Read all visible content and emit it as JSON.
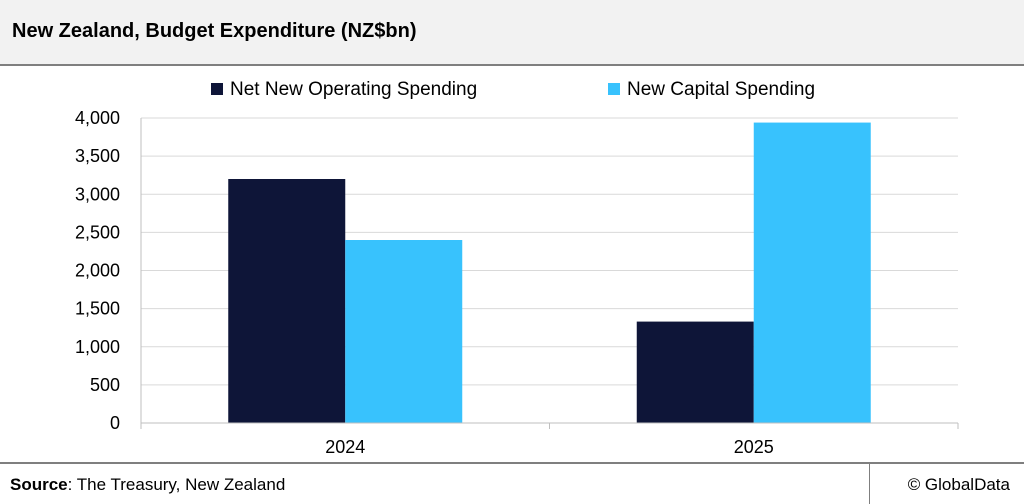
{
  "header": {
    "title": "New Zealand, Budget Expenditure (NZ$bn)"
  },
  "footer": {
    "source_label": "Source",
    "source_text": ": The Treasury, New Zealand",
    "copyright": "© GlobalData"
  },
  "colors": {
    "operating": "#0e1538",
    "capital": "#38c2fd",
    "grid": "#d9d9d9",
    "axis": "#bfbfbf"
  },
  "chart_data": {
    "type": "bar",
    "categories": [
      "2024",
      "2025"
    ],
    "series": [
      {
        "name": "Net New Operating Spending",
        "values": [
          3200,
          1330
        ],
        "color": "#0e1538"
      },
      {
        "name": "New Capital Spending",
        "values": [
          2400,
          3940
        ],
        "color": "#38c2fd"
      }
    ],
    "yticks": [
      "0",
      "500",
      "1,000",
      "1,500",
      "2,000",
      "2,500",
      "3,000",
      "3,500",
      "4,000"
    ],
    "ylim": [
      0,
      4000
    ],
    "grid": true,
    "legend_position": "top"
  }
}
